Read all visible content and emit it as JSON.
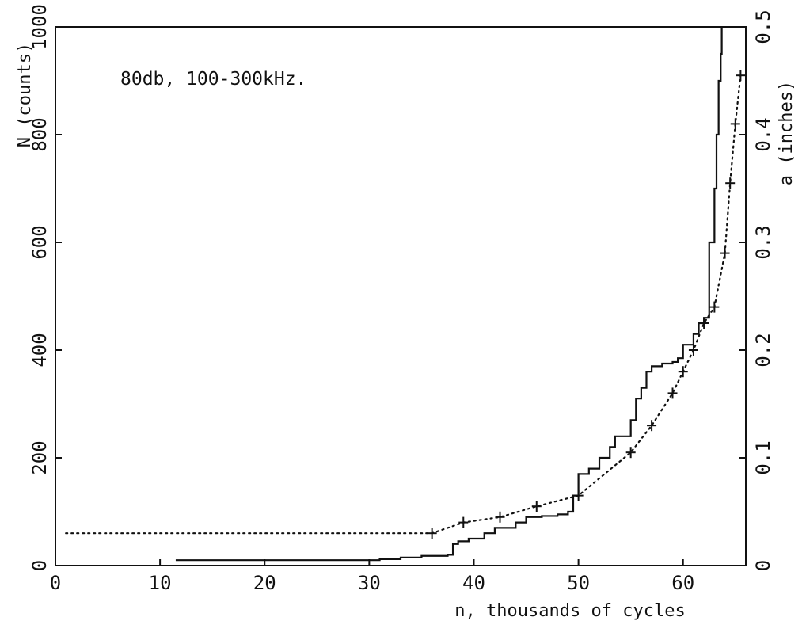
{
  "chart_data": {
    "type": "line",
    "title": "",
    "annotation": "80db, 100-300kHz.",
    "xlabel": "n, thousands of cycles",
    "ylabel": "N (counts)",
    "y2label": "a (inches)",
    "xlim": [
      0,
      66
    ],
    "ylim": [
      0,
      1000
    ],
    "y2lim": [
      0,
      0.5
    ],
    "x_ticks": [
      0,
      10,
      20,
      30,
      40,
      50,
      60
    ],
    "y_ticks": [
      0,
      200,
      400,
      600,
      800,
      1000
    ],
    "y2_ticks": [
      "0",
      "0.1",
      "0.2",
      "0.3",
      "0.4",
      "0.5"
    ],
    "grid": false,
    "series": [
      {
        "style": "solid-step",
        "axis": "left",
        "x": [
          11.5,
          20,
          20.5,
          30.5,
          31,
          33,
          35,
          37.5,
          38,
          38.5,
          39.5,
          41,
          42,
          44,
          45,
          46.5,
          48,
          49,
          49.5,
          50,
          51,
          52,
          53,
          53.5,
          55,
          55.5,
          56,
          56.5,
          57,
          58,
          59,
          59.5,
          60,
          61,
          61.5,
          62,
          62.5,
          63,
          63.2,
          63.4,
          63.6,
          63.7
        ],
        "y": [
          10,
          10,
          10,
          10,
          12,
          15,
          18,
          20,
          40,
          45,
          50,
          60,
          70,
          80,
          90,
          92,
          95,
          100,
          130,
          170,
          180,
          200,
          220,
          240,
          270,
          310,
          330,
          360,
          370,
          375,
          378,
          385,
          410,
          430,
          450,
          460,
          600,
          700,
          800,
          900,
          950,
          1000
        ]
      },
      {
        "style": "dotted-markers",
        "axis": "right",
        "x": [
          1,
          36,
          39,
          42.5,
          46,
          50,
          55,
          57,
          59,
          60,
          61,
          62,
          63,
          64,
          64.5,
          65,
          65.5
        ],
        "y": [
          0.03,
          0.03,
          0.04,
          0.045,
          0.055,
          0.065,
          0.105,
          0.13,
          0.16,
          0.18,
          0.2,
          0.225,
          0.24,
          0.29,
          0.355,
          0.41,
          0.455
        ],
        "marker_x": [
          36,
          39,
          42.5,
          46,
          50,
          55,
          57,
          59,
          60,
          61,
          62,
          63,
          64,
          64.5,
          65,
          65.5
        ],
        "marker_y": [
          0.03,
          0.04,
          0.045,
          0.055,
          0.065,
          0.105,
          0.13,
          0.16,
          0.18,
          0.2,
          0.225,
          0.24,
          0.29,
          0.355,
          0.41,
          0.455
        ]
      }
    ]
  }
}
